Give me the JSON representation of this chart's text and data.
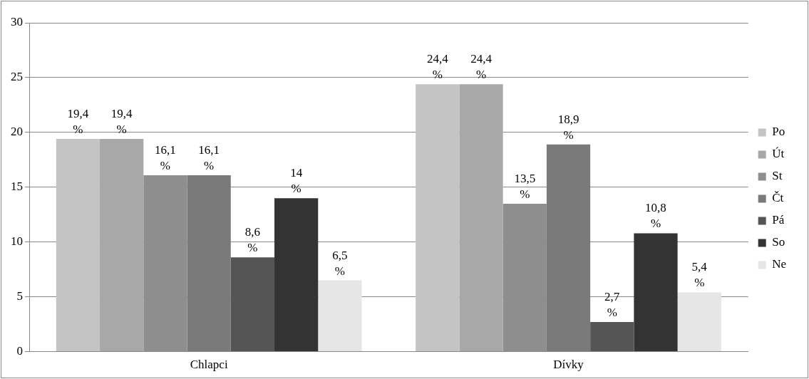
{
  "chart_data": {
    "type": "bar",
    "categories": [
      "Chlapci",
      "Dívky"
    ],
    "series": [
      {
        "name": "Po",
        "color": "#c4c4c4",
        "values": [
          19.4,
          24.4
        ],
        "value_labels": [
          "19,4 %",
          "24,4 %"
        ]
      },
      {
        "name": "Út",
        "color": "#a8a8a8",
        "values": [
          19.4,
          24.4
        ],
        "value_labels": [
          "19,4 %",
          "24,4 %"
        ]
      },
      {
        "name": "St",
        "color": "#8e8e8e",
        "values": [
          16.1,
          13.5
        ],
        "value_labels": [
          "16,1 %",
          "13,5 %"
        ]
      },
      {
        "name": "Čt",
        "color": "#7a7a7a",
        "values": [
          16.1,
          18.9
        ],
        "value_labels": [
          "16,1 %",
          "18,9 %"
        ]
      },
      {
        "name": "Pá",
        "color": "#555555",
        "values": [
          8.6,
          2.7
        ],
        "value_labels": [
          "8,6 %",
          "2,7 %"
        ]
      },
      {
        "name": "So",
        "color": "#333333",
        "values": [
          14,
          10.8
        ],
        "value_labels": [
          "14 %",
          "10,8 %"
        ]
      },
      {
        "name": "Ne",
        "color": "#e6e6e6",
        "values": [
          6.5,
          5.4
        ],
        "value_labels": [
          "6,5 %",
          "5,4 %"
        ]
      }
    ],
    "ylim": [
      0,
      30
    ],
    "yticks": [
      0,
      5,
      10,
      15,
      20,
      25,
      30
    ],
    "grid": "y",
    "legend": "right"
  }
}
